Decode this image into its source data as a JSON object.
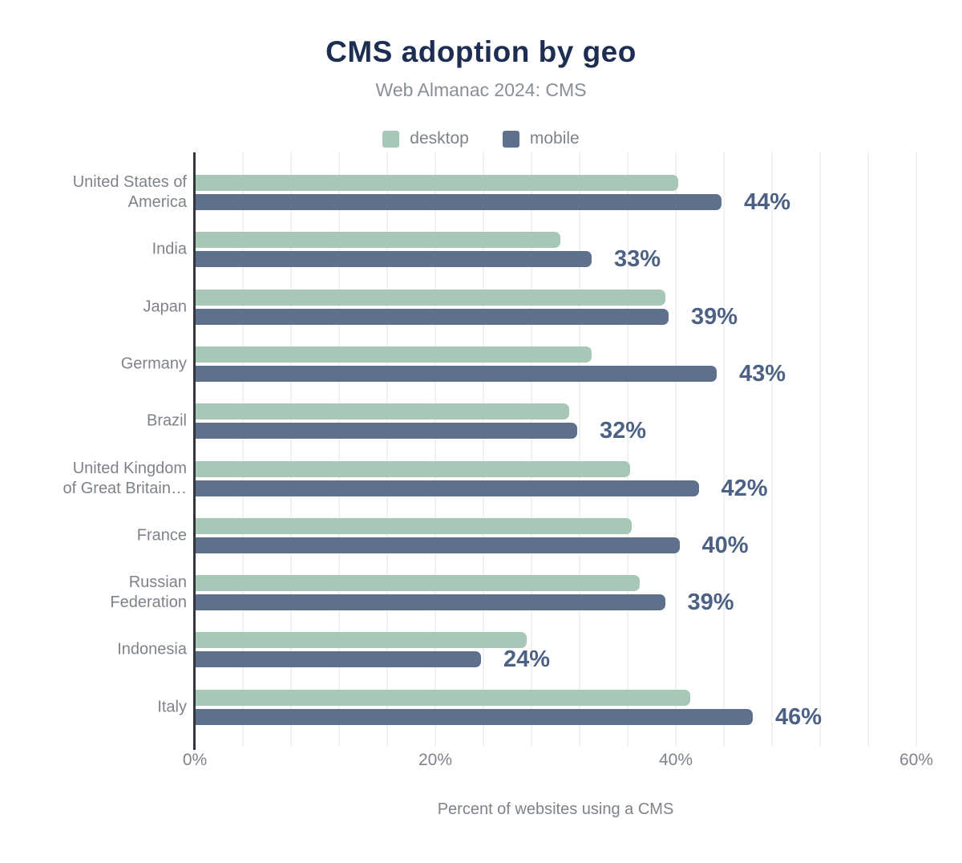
{
  "chart_data": {
    "type": "bar",
    "orientation": "horizontal",
    "title": "CMS adoption by geo",
    "subtitle": "Web Almanac 2024: CMS",
    "xlabel": "Percent of websites using a CMS",
    "xlim": [
      0,
      60
    ],
    "x_ticks": [
      "0%",
      "20%",
      "40%",
      "60%"
    ],
    "grid": "vertical-minor",
    "legend_position": "top",
    "categories": [
      "United States of\nAmerica",
      "India",
      "Japan",
      "Germany",
      "Brazil",
      "United Kingdom\nof Great Britain…",
      "France",
      "Russian\nFederation",
      "Indonesia",
      "Italy"
    ],
    "series": [
      {
        "name": "desktop",
        "color": "#a7c8b6",
        "values": [
          40.2,
          30.4,
          39.1,
          33.0,
          31.1,
          36.2,
          36.3,
          37.0,
          27.6,
          41.2
        ]
      },
      {
        "name": "mobile",
        "color": "#5e708c",
        "values": [
          43.8,
          33.0,
          39.4,
          43.4,
          31.8,
          41.9,
          40.3,
          39.1,
          23.8,
          46.4
        ],
        "data_labels": [
          "44%",
          "33%",
          "39%",
          "43%",
          "32%",
          "42%",
          "40%",
          "39%",
          "24%",
          "46%"
        ]
      }
    ],
    "colors": {
      "title": "#1d2e52",
      "subtitle": "#8a8f96",
      "axis_text": "#7e838a",
      "data_label": "#4d6184",
      "axis_line": "#32363c",
      "gridline": "#f2f1f2",
      "background": "#ffffff"
    }
  }
}
